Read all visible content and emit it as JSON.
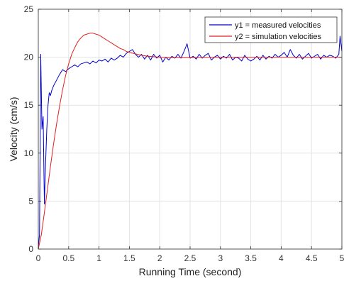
{
  "chart_data": {
    "type": "line",
    "title": "",
    "xlabel": "Running Time (second)",
    "ylabel": "Velocity (cm/s)",
    "xlim": [
      0,
      5
    ],
    "ylim": [
      0,
      25
    ],
    "xticks": [
      "0",
      "0.5",
      "1",
      "1.5",
      "2",
      "2.5",
      "3",
      "3.5",
      "4",
      "4.5",
      "5"
    ],
    "yticks": [
      "0",
      "5",
      "10",
      "15",
      "20",
      "25"
    ],
    "grid": true,
    "legend_position": "top-right",
    "series": [
      {
        "name": "y1 = measured velocities",
        "color": "#0000c8",
        "x": [
          0,
          0.02,
          0.04,
          0.06,
          0.08,
          0.1,
          0.12,
          0.14,
          0.16,
          0.18,
          0.2,
          0.22,
          0.25,
          0.3,
          0.35,
          0.4,
          0.45,
          0.5,
          0.55,
          0.6,
          0.65,
          0.7,
          0.75,
          0.8,
          0.85,
          0.9,
          0.95,
          1.0,
          1.05,
          1.1,
          1.15,
          1.2,
          1.25,
          1.3,
          1.35,
          1.4,
          1.45,
          1.5,
          1.55,
          1.6,
          1.65,
          1.7,
          1.75,
          1.8,
          1.85,
          1.9,
          1.95,
          2.0,
          2.05,
          2.1,
          2.15,
          2.2,
          2.25,
          2.3,
          2.35,
          2.4,
          2.45,
          2.5,
          2.55,
          2.6,
          2.65,
          2.7,
          2.75,
          2.8,
          2.85,
          2.9,
          2.95,
          3.0,
          3.05,
          3.1,
          3.15,
          3.2,
          3.25,
          3.3,
          3.35,
          3.4,
          3.45,
          3.5,
          3.55,
          3.6,
          3.65,
          3.7,
          3.75,
          3.8,
          3.85,
          3.9,
          3.95,
          4.0,
          4.05,
          4.1,
          4.15,
          4.2,
          4.25,
          4.3,
          4.35,
          4.4,
          4.45,
          4.5,
          4.55,
          4.6,
          4.65,
          4.7,
          4.75,
          4.8,
          4.85,
          4.9,
          4.95,
          4.97,
          5.0
        ],
        "y": [
          0.2,
          1.5,
          20.3,
          12.5,
          13.8,
          4.7,
          9.0,
          12.5,
          15.0,
          16.3,
          16.0,
          16.5,
          17.0,
          17.6,
          18.2,
          18.7,
          18.5,
          18.8,
          19.0,
          19.2,
          19.0,
          19.3,
          19.4,
          19.5,
          19.3,
          19.6,
          19.4,
          19.7,
          19.6,
          19.8,
          19.5,
          19.9,
          19.7,
          19.9,
          20.2,
          20.0,
          20.4,
          20.6,
          20.8,
          20.3,
          20.0,
          20.3,
          19.8,
          20.2,
          19.7,
          20.3,
          19.9,
          20.2,
          19.5,
          20.0,
          19.7,
          20.1,
          19.9,
          20.3,
          19.9,
          20.6,
          21.4,
          19.9,
          20.1,
          19.8,
          20.3,
          19.9,
          20.2,
          20.4,
          19.7,
          20.0,
          20.2,
          19.8,
          20.1,
          19.9,
          20.3,
          19.7,
          20.0,
          19.9,
          19.6,
          20.2,
          19.8,
          19.6,
          19.8,
          20.1,
          19.7,
          20.2,
          19.8,
          20.1,
          19.9,
          20.3,
          20.0,
          20.2,
          20.5,
          20.0,
          20.8,
          20.2,
          19.9,
          20.3,
          19.8,
          20.1,
          20.4,
          19.9,
          20.1,
          20.3,
          19.8,
          20.2,
          20.0,
          20.2,
          20.1,
          19.9,
          20.3,
          22.2,
          20.6
        ]
      },
      {
        "name": "y2 = simulation velocities",
        "color": "#e02020",
        "x": [
          0,
          0.05,
          0.1,
          0.15,
          0.2,
          0.25,
          0.3,
          0.35,
          0.4,
          0.45,
          0.5,
          0.55,
          0.6,
          0.65,
          0.7,
          0.75,
          0.8,
          0.85,
          0.9,
          0.95,
          1.0,
          1.05,
          1.1,
          1.15,
          1.2,
          1.25,
          1.3,
          1.35,
          1.4,
          1.45,
          1.5,
          1.6,
          1.7,
          1.8,
          1.9,
          2.0,
          2.2,
          2.4,
          2.6,
          2.8,
          3.0,
          3.5,
          4.0,
          4.5,
          5.0
        ],
        "y": [
          0,
          1.5,
          3.8,
          6.2,
          8.6,
          10.9,
          13.0,
          14.9,
          16.6,
          18.1,
          19.3,
          20.3,
          21.0,
          21.6,
          22.0,
          22.3,
          22.4,
          22.5,
          22.5,
          22.4,
          22.3,
          22.1,
          21.9,
          21.7,
          21.5,
          21.3,
          21.1,
          20.9,
          20.8,
          20.6,
          20.5,
          20.35,
          20.2,
          20.1,
          20.05,
          20.0,
          19.95,
          19.95,
          19.97,
          19.98,
          20.0,
          20.0,
          20.0,
          20.0,
          20.0
        ]
      }
    ]
  }
}
